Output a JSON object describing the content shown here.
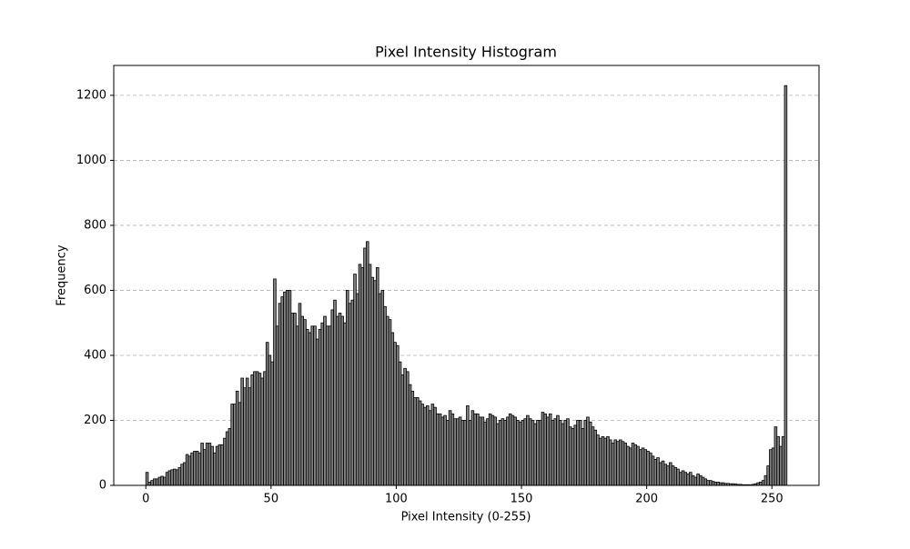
{
  "chart_data": {
    "type": "histogram",
    "title": "Pixel Intensity Histogram",
    "x_label": "Pixel Intensity (0-255)",
    "y_label": "Frequency",
    "color": "#808080",
    "edgecolor": "#000000",
    "grid": true,
    "xlim": [
      -12.8,
      268.8
    ],
    "ylim": [
      0,
      1292
    ],
    "xticks": [
      0,
      50,
      100,
      150,
      200,
      250
    ],
    "yticks": [
      0,
      200,
      400,
      600,
      800,
      1000,
      1200
    ],
    "bins": [
      0,
      1,
      2,
      3,
      4,
      5,
      6,
      7,
      8,
      9,
      10,
      11,
      12,
      13,
      14,
      15,
      16,
      17,
      18,
      19,
      20,
      21,
      22,
      23,
      24,
      25,
      26,
      27,
      28,
      29,
      30,
      31,
      32,
      33,
      34,
      35,
      36,
      37,
      38,
      39,
      40,
      41,
      42,
      43,
      44,
      45,
      46,
      47,
      48,
      49,
      50,
      51,
      52,
      53,
      54,
      55,
      56,
      57,
      58,
      59,
      60,
      61,
      62,
      63,
      64,
      65,
      66,
      67,
      68,
      69,
      70,
      71,
      72,
      73,
      74,
      75,
      76,
      77,
      78,
      79,
      80,
      81,
      82,
      83,
      84,
      85,
      86,
      87,
      88,
      89,
      90,
      91,
      92,
      93,
      94,
      95,
      96,
      97,
      98,
      99,
      100,
      101,
      102,
      103,
      104,
      105,
      106,
      107,
      108,
      109,
      110,
      111,
      112,
      113,
      114,
      115,
      116,
      117,
      118,
      119,
      120,
      121,
      122,
      123,
      124,
      125,
      126,
      127,
      128,
      129,
      130,
      131,
      132,
      133,
      134,
      135,
      136,
      137,
      138,
      139,
      140,
      141,
      142,
      143,
      144,
      145,
      146,
      147,
      148,
      149,
      150,
      151,
      152,
      153,
      154,
      155,
      156,
      157,
      158,
      159,
      160,
      161,
      162,
      163,
      164,
      165,
      166,
      167,
      168,
      169,
      170,
      171,
      172,
      173,
      174,
      175,
      176,
      177,
      178,
      179,
      180,
      181,
      182,
      183,
      184,
      185,
      186,
      187,
      188,
      189,
      190,
      191,
      192,
      193,
      194,
      195,
      196,
      197,
      198,
      199,
      200,
      201,
      202,
      203,
      204,
      205,
      206,
      207,
      208,
      209,
      210,
      211,
      212,
      213,
      214,
      215,
      216,
      217,
      218,
      219,
      220,
      221,
      222,
      223,
      224,
      225,
      226,
      227,
      228,
      229,
      230,
      231,
      232,
      233,
      234,
      235,
      236,
      237,
      238,
      239,
      240,
      241,
      242,
      243,
      244,
      245,
      246,
      247,
      248,
      249,
      250,
      251,
      252,
      253,
      254,
      255,
      256
    ],
    "counts": [
      40,
      10,
      15,
      20,
      20,
      25,
      28,
      25,
      40,
      45,
      48,
      50,
      48,
      55,
      65,
      70,
      95,
      90,
      100,
      105,
      105,
      100,
      130,
      110,
      130,
      130,
      120,
      100,
      120,
      125,
      125,
      145,
      165,
      175,
      250,
      250,
      290,
      255,
      330,
      300,
      330,
      300,
      340,
      350,
      350,
      345,
      330,
      350,
      440,
      400,
      380,
      635,
      490,
      560,
      580,
      595,
      600,
      600,
      530,
      530,
      490,
      560,
      520,
      510,
      480,
      470,
      490,
      490,
      450,
      480,
      500,
      520,
      490,
      490,
      540,
      570,
      520,
      530,
      520,
      500,
      600,
      560,
      570,
      650,
      590,
      680,
      670,
      730,
      750,
      680,
      640,
      630,
      670,
      590,
      600,
      550,
      520,
      510,
      470,
      440,
      430,
      380,
      340,
      360,
      350,
      310,
      290,
      270,
      270,
      260,
      250,
      240,
      245,
      230,
      250,
      240,
      220,
      220,
      210,
      215,
      200,
      230,
      220,
      205,
      205,
      210,
      200,
      200,
      245,
      200,
      230,
      220,
      220,
      210,
      210,
      195,
      205,
      220,
      215,
      210,
      190,
      200,
      205,
      200,
      210,
      220,
      215,
      210,
      200,
      195,
      200,
      205,
      215,
      205,
      200,
      190,
      200,
      200,
      225,
      220,
      210,
      220,
      200,
      205,
      215,
      200,
      190,
      200,
      205,
      180,
      175,
      185,
      200,
      200,
      175,
      200,
      210,
      195,
      180,
      170,
      155,
      145,
      150,
      145,
      150,
      140,
      130,
      140,
      135,
      140,
      135,
      130,
      120,
      115,
      130,
      125,
      120,
      110,
      115,
      110,
      105,
      100,
      90,
      80,
      85,
      70,
      75,
      65,
      60,
      70,
      60,
      55,
      50,
      40,
      45,
      40,
      35,
      40,
      30,
      25,
      35,
      30,
      25,
      20,
      15,
      15,
      12,
      10,
      10,
      8,
      8,
      6,
      6,
      5,
      5,
      4,
      3,
      3,
      2,
      2,
      2,
      2,
      3,
      5,
      8,
      10,
      15,
      30,
      60,
      110,
      115,
      180,
      150,
      120,
      150,
      1230
    ]
  }
}
